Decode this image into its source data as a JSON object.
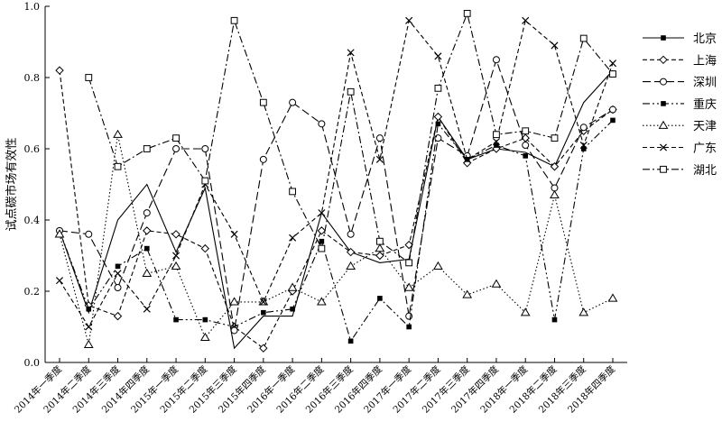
{
  "chart_data": {
    "type": "line",
    "ylabel": "试点碳市场有效性",
    "xlabel": "",
    "ylim": [
      0.0,
      1.0
    ],
    "yticks": [
      "0.0",
      "0.2",
      "0.4",
      "0.6",
      "0.8",
      "1.0"
    ],
    "grid": false,
    "legend_position": "right",
    "categories": [
      "2014年一季度",
      "2014年二季度",
      "2014年三季度",
      "2014年四季度",
      "2015年一季度",
      "2015年二季度",
      "2015年三季度",
      "2015年四季度",
      "2016年一季度",
      "2016年二季度",
      "2016年三季度",
      "2016年四季度",
      "2017年一季度",
      "2017年二季度",
      "2017年三季度",
      "2017年四季度",
      "2018年一季度",
      "2018年二季度",
      "2018年三季度",
      "2018年四季度"
    ],
    "x_tick_labels": [
      "2014年一季度",
      "2014年二季度",
      "2014年三季度",
      "2014年四季度",
      "2015年一季度",
      "2015年二季度",
      "2015年三季度",
      "2015年四季度",
      "2016年一季度",
      "2016年二季度",
      "2016年三季度",
      "2016年四季度",
      "2017年一季度",
      "2017年二季度",
      "2017年三季度",
      "2017年四季度",
      "2018年一季度",
      "2018年二季度",
      "2018年三季度",
      "2018年四季度"
    ],
    "series": [
      {
        "name": "北京",
        "marker": "square-filled",
        "dash": "solid",
        "markers": [
          0,
          0,
          0,
          0,
          0,
          0,
          0,
          0,
          0,
          0,
          0,
          0,
          0,
          0,
          0,
          0,
          0,
          0,
          0,
          0
        ],
        "values": [
          0.37,
          0.14,
          0.4,
          0.5,
          0.31,
          0.49,
          0.04,
          0.13,
          0.13,
          0.42,
          0.31,
          0.28,
          0.29,
          0.69,
          0.57,
          0.6,
          0.59,
          0.55,
          0.73,
          0.82
        ]
      },
      {
        "name": "上海",
        "marker": "diamond-open",
        "dash": "dash",
        "markers": [
          1,
          1,
          1,
          1,
          1,
          1,
          1,
          1,
          1,
          1,
          1,
          1,
          1,
          1,
          1,
          1,
          1,
          1,
          1,
          1
        ],
        "values": [
          0.82,
          0.16,
          0.13,
          0.37,
          0.36,
          0.32,
          0.1,
          0.04,
          0.2,
          0.37,
          0.31,
          0.3,
          0.33,
          0.69,
          0.56,
          0.6,
          0.63,
          0.55,
          0.65,
          0.71
        ]
      },
      {
        "name": "深圳",
        "marker": "circle-open",
        "dash": "longdash",
        "markers": [
          1,
          1,
          1,
          1,
          1,
          1,
          1,
          1,
          1,
          1,
          1,
          1,
          1,
          1,
          1,
          1,
          1,
          1,
          1,
          1
        ],
        "values": [
          0.37,
          0.36,
          0.21,
          0.42,
          0.6,
          0.6,
          0.09,
          0.57,
          0.73,
          0.67,
          0.36,
          0.63,
          0.13,
          0.63,
          0.58,
          0.85,
          0.61,
          0.49,
          0.66,
          0.71
        ]
      },
      {
        "name": "重庆",
        "marker": "square-filled",
        "dash": "dashdotdot",
        "markers": [
          0,
          1,
          1,
          1,
          1,
          1,
          0,
          1,
          1,
          1,
          1,
          1,
          1,
          1,
          1,
          1,
          1,
          1,
          1,
          1
        ],
        "values": [
          0.37,
          0.15,
          0.27,
          0.32,
          0.12,
          0.12,
          0.1,
          0.14,
          0.15,
          0.34,
          0.06,
          0.18,
          0.1,
          0.67,
          0.57,
          0.61,
          0.58,
          0.12,
          0.6,
          0.68
        ]
      },
      {
        "name": "天津",
        "marker": "triangle-open",
        "dash": "dot",
        "markers": [
          1,
          1,
          1,
          1,
          1,
          1,
          1,
          1,
          1,
          1,
          1,
          1,
          1,
          1,
          1,
          1,
          1,
          1,
          1,
          1
        ],
        "values": [
          0.36,
          0.05,
          0.64,
          0.25,
          0.27,
          0.07,
          0.17,
          0.17,
          0.21,
          0.17,
          0.27,
          0.32,
          0.21,
          0.27,
          0.19,
          0.22,
          0.14,
          0.47,
          0.14,
          0.18
        ]
      },
      {
        "name": "广东",
        "marker": "x",
        "dash": "dash",
        "markers": [
          1,
          1,
          1,
          1,
          1,
          1,
          1,
          1,
          1,
          1,
          1,
          1,
          1,
          1,
          1,
          1,
          1,
          1,
          1,
          1
        ],
        "values": [
          0.23,
          0.1,
          0.25,
          0.15,
          0.3,
          0.5,
          0.36,
          0.17,
          0.35,
          0.42,
          0.87,
          0.57,
          0.96,
          0.86,
          0.57,
          0.62,
          0.96,
          0.89,
          0.61,
          0.84
        ]
      },
      {
        "name": "湖北",
        "marker": "square-open",
        "dash": "dashdot",
        "markers": [
          0,
          1,
          1,
          1,
          1,
          1,
          1,
          1,
          1,
          1,
          1,
          1,
          1,
          1,
          1,
          1,
          1,
          1,
          1,
          1
        ],
        "values": [
          null,
          0.8,
          0.55,
          0.6,
          0.63,
          0.51,
          0.96,
          0.73,
          0.48,
          0.32,
          0.76,
          0.34,
          0.28,
          0.77,
          0.98,
          0.64,
          0.65,
          0.63,
          0.91,
          0.81
        ]
      }
    ]
  }
}
